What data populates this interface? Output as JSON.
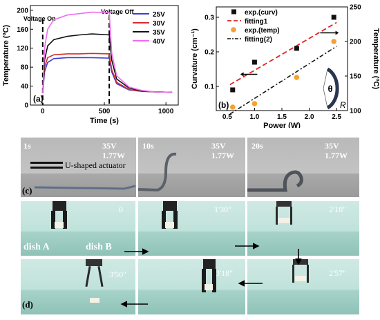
{
  "panel_a": {
    "label": "(a)",
    "annotations": {
      "on": "Voltage On",
      "off": "Voltage Off"
    },
    "chart_data": {
      "type": "line",
      "xlabel": "Time (s)",
      "ylabel": "Temperature (ºC)",
      "xlim": [
        -100,
        1100
      ],
      "ylim": [
        0,
        210
      ],
      "xticks": [
        "0",
        "500",
        "1000"
      ],
      "yticks": [
        "0",
        "40",
        "80",
        "120",
        "160",
        "200"
      ],
      "legend_position": "top-right",
      "series": [
        {
          "name": "25V",
          "color": "#3b3bd9",
          "values": [
            [
              0,
              25
            ],
            [
              15,
              70
            ],
            [
              40,
              90
            ],
            [
              90,
              98
            ],
            [
              200,
              100
            ],
            [
              300,
              100
            ],
            [
              400,
              100
            ],
            [
              540,
              99
            ],
            [
              560,
              70
            ],
            [
              600,
              45
            ],
            [
              700,
              32
            ],
            [
              800,
              29
            ],
            [
              900,
              28
            ],
            [
              1050,
              27
            ]
          ]
        },
        {
          "name": "30V",
          "color": "#d92b2b",
          "values": [
            [
              0,
              25
            ],
            [
              15,
              80
            ],
            [
              40,
              100
            ],
            [
              90,
              106
            ],
            [
              200,
              108
            ],
            [
              300,
              108
            ],
            [
              400,
              109
            ],
            [
              540,
              108
            ],
            [
              560,
              75
            ],
            [
              600,
              48
            ],
            [
              700,
              33
            ],
            [
              800,
              29
            ],
            [
              900,
              28
            ],
            [
              1050,
              27
            ]
          ]
        },
        {
          "name": "35V",
          "color": "#111111",
          "values": [
            [
              0,
              25
            ],
            [
              15,
              95
            ],
            [
              40,
              125
            ],
            [
              90,
              138
            ],
            [
              200,
              145
            ],
            [
              300,
              148
            ],
            [
              400,
              150
            ],
            [
              540,
              148
            ],
            [
              560,
              95
            ],
            [
              600,
              55
            ],
            [
              700,
              36
            ],
            [
              800,
              30
            ],
            [
              900,
              28
            ],
            [
              1050,
              27
            ]
          ]
        },
        {
          "name": "40V",
          "color": "#f06cf0",
          "values": [
            [
              0,
              25
            ],
            [
              15,
              120
            ],
            [
              40,
              160
            ],
            [
              90,
              180
            ],
            [
              200,
              190
            ],
            [
              300,
              193
            ],
            [
              400,
              196
            ],
            [
              540,
              195
            ],
            [
              560,
              110
            ],
            [
              600,
              62
            ],
            [
              700,
              38
            ],
            [
              800,
              31
            ],
            [
              900,
              28
            ],
            [
              1050,
              27
            ]
          ]
        }
      ]
    }
  },
  "panel_b": {
    "label": "(b)",
    "inset_symbol": "θ",
    "inset_radius": "R",
    "chart_data": {
      "type": "scatter",
      "xlabel": "Power (W)",
      "ylabel": "Curvature (cm⁻¹)",
      "ylabel_right": "Temperature (ºC)",
      "xlim": [
        0.3,
        2.7
      ],
      "ylim": [
        0.03,
        0.33
      ],
      "ylim_right": [
        100,
        250
      ],
      "xticks": [
        "0.5",
        "1.0",
        "1.5",
        "2.0",
        "2.5"
      ],
      "yticks": [
        "0.1",
        "0.2",
        "0.3"
      ],
      "yticks_right": [
        "100",
        "150",
        "200",
        "250"
      ],
      "legend_position": "top-left",
      "series": [
        {
          "name": "exp.(curv)",
          "color": "#111111",
          "axis": "left",
          "x": [
            0.6,
            1.0,
            1.77,
            2.45
          ],
          "values": [
            0.09,
            0.17,
            0.21,
            0.3
          ]
        },
        {
          "name": "fitting1",
          "color": "#e02020",
          "axis": "left",
          "x": [
            0.55,
            2.5
          ],
          "values": [
            0.105,
            0.285
          ]
        },
        {
          "name": "exp.(temp)",
          "color": "#f5a030",
          "axis": "right",
          "x": [
            0.6,
            1.0,
            1.77,
            2.45
          ],
          "values": [
            105,
            110,
            148,
            200
          ]
        },
        {
          "name": "fitting(2)",
          "color": "#111111",
          "axis": "right",
          "x": [
            0.55,
            2.5
          ],
          "values": [
            95,
            193
          ]
        }
      ]
    }
  },
  "panel_c": {
    "label": "(c)",
    "frames": [
      {
        "time": "1s",
        "voltage": "35V",
        "power": "1.77W",
        "note": "U-shaped actuator"
      },
      {
        "time": "10s",
        "voltage": "35V",
        "power": "1.77W"
      },
      {
        "time": "20s",
        "voltage": "35V",
        "power": "1.77W"
      }
    ]
  },
  "panel_d": {
    "label": "(d)",
    "dish_a": "dish A",
    "dish_b": "dish B",
    "frames": [
      "0",
      "1'30\"",
      "2'18\"",
      "3'50\"",
      "3'18\"",
      "2'57\""
    ]
  }
}
